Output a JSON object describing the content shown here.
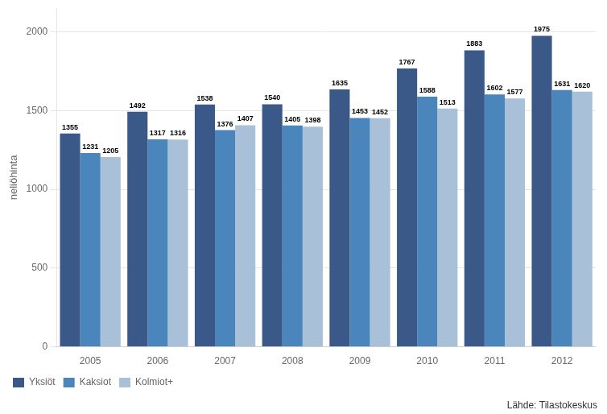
{
  "chart_data": {
    "type": "bar",
    "ylabel": "neliöhinta",
    "categories": [
      "2005",
      "2006",
      "2007",
      "2008",
      "2009",
      "2010",
      "2011",
      "2012"
    ],
    "series": [
      {
        "name": "Yksiöt",
        "color": "#3A5988",
        "values": [
          1355,
          1492,
          1538,
          1540,
          1635,
          1767,
          1883,
          1975
        ]
      },
      {
        "name": "Kaksiot",
        "color": "#4A86BC",
        "values": [
          1231,
          1317,
          1376,
          1405,
          1453,
          1588,
          1602,
          1631
        ]
      },
      {
        "name": "Kolmiot+",
        "color": "#A8C0D8",
        "values": [
          1205,
          1316,
          1407,
          1398,
          1452,
          1513,
          1577,
          1620
        ]
      }
    ],
    "ylim": [
      0,
      2150
    ],
    "yticks": [
      0,
      500,
      1000,
      1500,
      2000
    ],
    "grid": true,
    "legend": "bottom",
    "data_labels": true,
    "annotations": [
      "Lähde: Tilastokeskus"
    ]
  }
}
